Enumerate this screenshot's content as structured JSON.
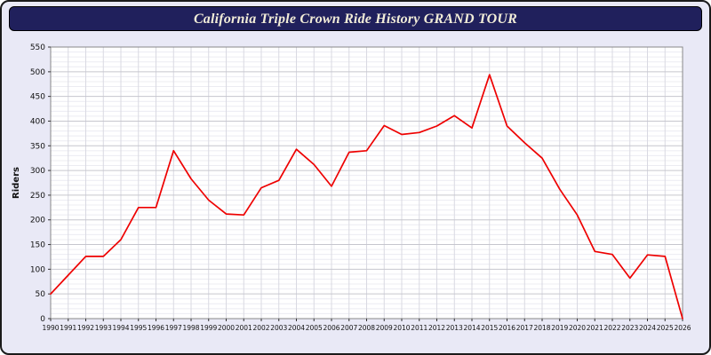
{
  "header": {
    "title": "California Triple Crown Ride History GRAND TOUR"
  },
  "colors": {
    "line": "#ee0000",
    "title_bar_bg": "#20205c",
    "title_text": "#f2edd8",
    "page_bg": "#e9e9f6",
    "plot_bg": "#ffffff",
    "grid_major": "#c6c6ce",
    "grid_minor": "#ececf2",
    "grid_vertical": "#d9d9e2",
    "plot_border": "#888888"
  },
  "chart_data": {
    "type": "line",
    "title": "California Triple Crown Ride History GRAND TOUR",
    "xlabel": "",
    "ylabel": "Riders",
    "ylim": [
      0,
      550
    ],
    "y_major_step": 50,
    "y_minor_step": 10,
    "grid": true,
    "legend": "none",
    "line_color": "#ee0000",
    "x": [
      1990,
      1991,
      1992,
      1993,
      1994,
      1995,
      1996,
      1997,
      1998,
      1999,
      2000,
      2001,
      2002,
      2003,
      2004,
      2005,
      2006,
      2007,
      2008,
      2009,
      2010,
      2011,
      2012,
      2013,
      2014,
      2015,
      2016,
      2017,
      2018,
      2019,
      2020,
      2021,
      2022,
      2023,
      2024,
      2025,
      2026
    ],
    "values": [
      50,
      88,
      126,
      126,
      160,
      225,
      225,
      340,
      283,
      240,
      212,
      210,
      265,
      280,
      343,
      312,
      268,
      337,
      340,
      391,
      373,
      377,
      390,
      411,
      386,
      494,
      390,
      356,
      325,
      262,
      210,
      136,
      130,
      82,
      129,
      126,
      0
    ]
  }
}
